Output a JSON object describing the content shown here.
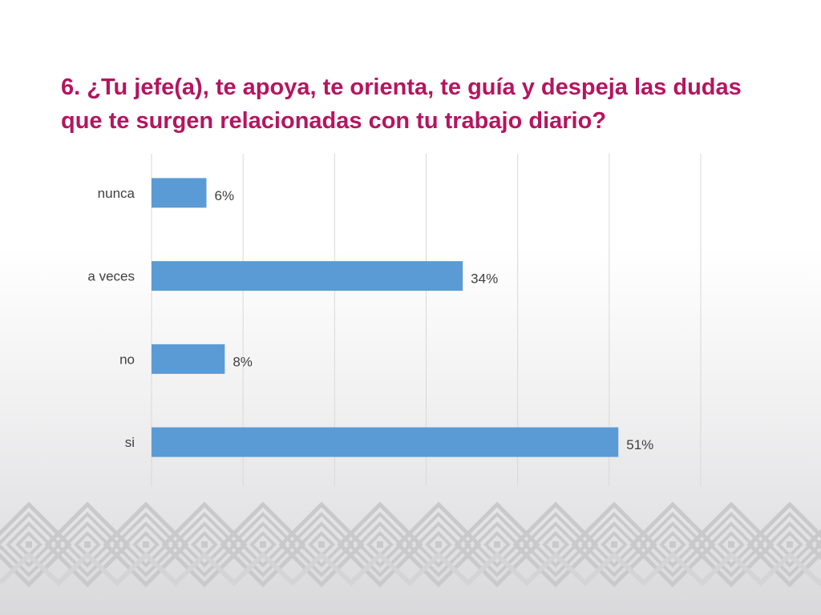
{
  "title": "6. ¿Tu jefe(a), te apoya, te orienta, te guía y despeja las dudas que te surgen relacionadas con tu trabajo diario?",
  "colors": {
    "title": "#b5155f",
    "bar": "#5b9bd5",
    "grid": "#d9d9d9",
    "text": "#404040",
    "pattern": "#c9c9cc"
  },
  "chart_data": {
    "type": "bar",
    "orientation": "horizontal",
    "categories": [
      "nunca",
      "a veces",
      "no",
      "si"
    ],
    "values": [
      6,
      34,
      8,
      51
    ],
    "data_labels": [
      "6%",
      "34%",
      "8%",
      "51%"
    ],
    "xlim": [
      0,
      60
    ],
    "grid": true,
    "legend": "none"
  }
}
